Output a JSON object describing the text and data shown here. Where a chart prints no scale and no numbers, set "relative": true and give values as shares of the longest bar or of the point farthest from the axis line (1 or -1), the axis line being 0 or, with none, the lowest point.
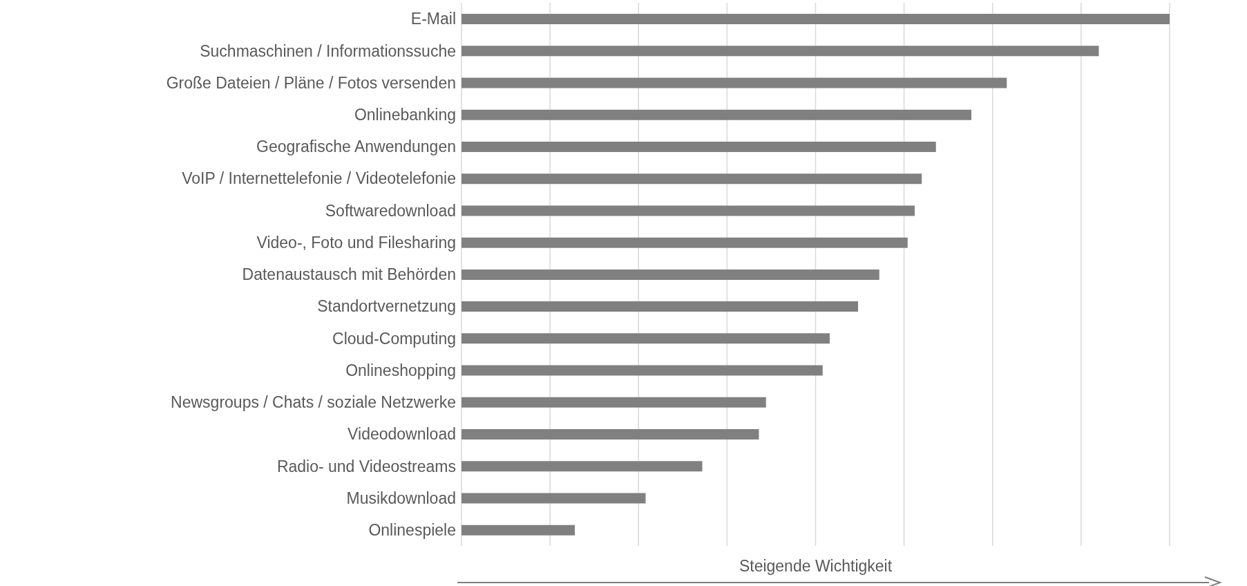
{
  "chart_data": {
    "type": "bar",
    "orientation": "horizontal",
    "relative": true,
    "grid": "x",
    "color": "#808080",
    "xlabel": "Steigende Wichtigkeit",
    "categories": [
      "E-Mail",
      "Suchmaschinen / Informationssuche",
      "Große Dateien / Pläne / Fotos versenden",
      "Onlinebanking",
      "Geografische Anwendungen",
      "VoIP / Internettelefonie / Videotelefonie",
      "Softwaredownload",
      "Video-, Foto und Filesharing",
      "Datenaustausch mit Behörden",
      "Standortvernetzung",
      "Cloud-Computing",
      "Onlineshopping",
      "Newsgroups / Chats / soziale Netzwerke",
      "Videodownload",
      "Radio- und Videostreams",
      "Musikdownload",
      "Onlinespiele"
    ],
    "values": [
      1,
      0.9,
      0.77,
      0.72,
      0.67,
      0.65,
      0.64,
      0.63,
      0.59,
      0.56,
      0.52,
      0.51,
      0.43,
      0.42,
      0.34,
      0.26,
      0.16
    ]
  }
}
